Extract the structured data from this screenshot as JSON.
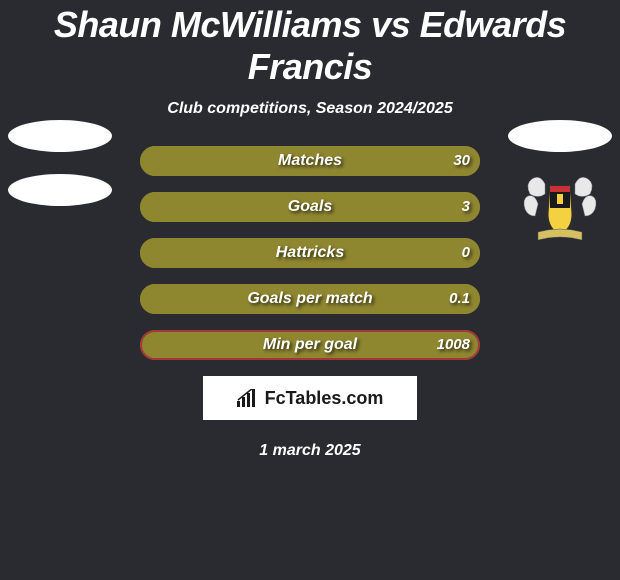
{
  "title": "Shaun McWilliams vs Edwards Francis",
  "subtitle": "Club competitions, Season 2024/2025",
  "date": "1 march 2025",
  "brand": "FcTables.com",
  "colors": {
    "background": "#2a2b30",
    "bar_fill": "#8f8630",
    "bar_border_primary": "#8f8630",
    "bar_border_overflow": "#a43838",
    "text": "#ffffff"
  },
  "bars": [
    {
      "label": "Matches",
      "left": "",
      "right": "30",
      "fill_pct": 100,
      "border": "#8f8630"
    },
    {
      "label": "Goals",
      "left": "",
      "right": "3",
      "fill_pct": 100,
      "border": "#8f8630"
    },
    {
      "label": "Hattricks",
      "left": "",
      "right": "0",
      "fill_pct": 100,
      "border": "#8f8630"
    },
    {
      "label": "Goals per match",
      "left": "",
      "right": "0.1",
      "fill_pct": 100,
      "border": "#8f8630"
    },
    {
      "label": "Min per goal",
      "left": "",
      "right": "1008",
      "fill_pct": 100,
      "border": "#a43838"
    }
  ],
  "logos": {
    "left": {
      "type": "ellipse-pair"
    },
    "right": {
      "type": "ellipse-plus-crest"
    }
  }
}
